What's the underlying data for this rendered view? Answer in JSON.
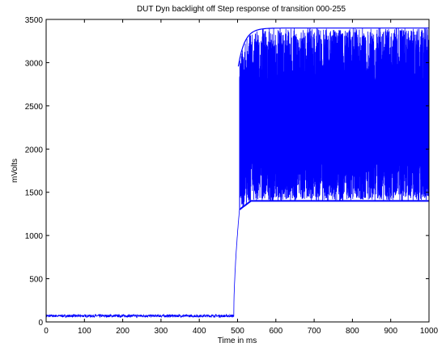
{
  "chart_data": {
    "type": "line",
    "title": "DUT Dyn backlight off Step response of transition 000-255",
    "xlabel": "Time in ms",
    "ylabel": "mVolts",
    "xlim": [
      0,
      1000
    ],
    "ylim": [
      0,
      3500
    ],
    "xticks": [
      0,
      100,
      200,
      300,
      400,
      500,
      600,
      700,
      800,
      900,
      1000
    ],
    "yticks": [
      0,
      500,
      1000,
      1500,
      2000,
      2500,
      3000,
      3500
    ],
    "grid": false,
    "legend": "none",
    "series": [
      {
        "color": "#0000ff",
        "segments": {
          "baseline": {
            "x": [
              0,
              490
            ],
            "level": 70,
            "noise": 15
          },
          "rise": {
            "x": [
              490,
              505
            ],
            "y": [
              70,
              1300
            ]
          },
          "lower_envelope": {
            "x": [
              505,
              1000
            ],
            "y_start": 1300,
            "y_end": 1400
          },
          "upper_envelope": {
            "x": [
              500,
              1000
            ],
            "y_start": 2900,
            "y_end": 3400
          },
          "oscillation_period_ms": 20
        }
      }
    ]
  },
  "colors": {
    "series": "#0000ff",
    "axes": "#000000",
    "background": "#ffffff"
  }
}
